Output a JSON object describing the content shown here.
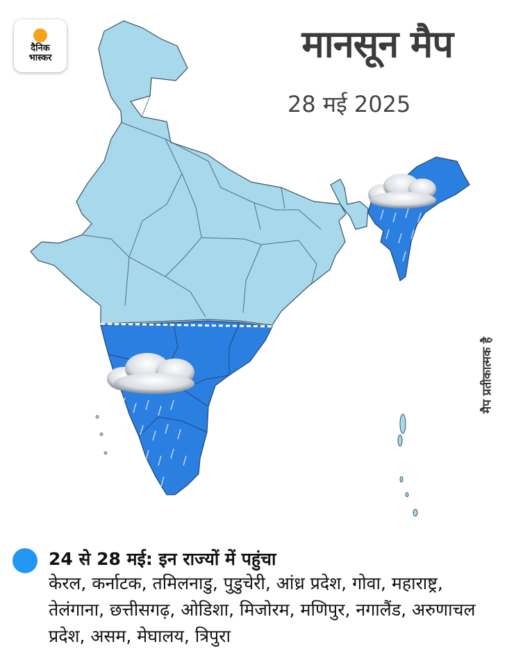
{
  "logo": {
    "text": "दैनिक भास्कर"
  },
  "title": "मानसून मैप",
  "date": "28 मई 2025",
  "side_note": "मैप प्रतीकात्मक है",
  "colors": {
    "dry_region": "#a8d8ec",
    "monsoon_region": "#2b7fe0",
    "border": "#3a5560",
    "legend_dot": "#2196f3"
  },
  "legend": {
    "heading": "24 से 28 मई: इन राज्यों में पहुंचा",
    "states": "केरल, कर्नाटक, तमिलनाडु, पुडुचेरी, आंध्र प्रदेश, गोवा, महाराष्ट्र, तेलंगाना, छत्तीसगढ़, ओडिशा, मिजोरम, मणिपुर, नगालैंड, अरुणाचल प्रदेश,  असम, मेघालय, त्रिपुरा"
  },
  "map_layers": [
    "india-outline",
    "monsoon-covered-south",
    "monsoon-covered-northeast",
    "monsoon-line",
    "rain-clouds",
    "islands"
  ]
}
